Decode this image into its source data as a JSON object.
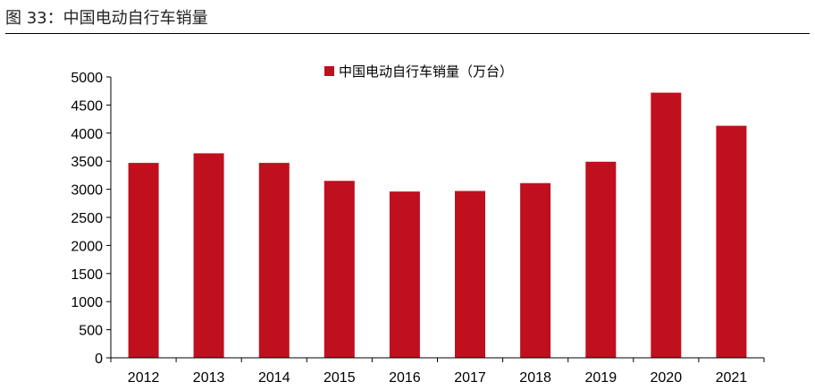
{
  "figure": {
    "title": "图 33：中国电动自行车销量"
  },
  "colors": {
    "bar": "#c0101e",
    "axis": "#000000",
    "text": "#000000"
  },
  "chart_data": {
    "type": "bar",
    "title": "",
    "xlabel": "",
    "ylabel": "",
    "categories": [
      "2012",
      "2013",
      "2014",
      "2015",
      "2016",
      "2017",
      "2018",
      "2019",
      "2020",
      "2021"
    ],
    "series": [
      {
        "name": "中国电动自行车销量（万台）",
        "values": [
          3470,
          3640,
          3470,
          3150,
          2960,
          2970,
          3110,
          3490,
          4720,
          4130
        ]
      }
    ],
    "ylim": [
      0,
      5000
    ],
    "yticks": [
      0,
      500,
      1000,
      1500,
      2000,
      2500,
      3000,
      3500,
      4000,
      4500,
      5000
    ],
    "grid": false,
    "legend_position": "top-center"
  }
}
